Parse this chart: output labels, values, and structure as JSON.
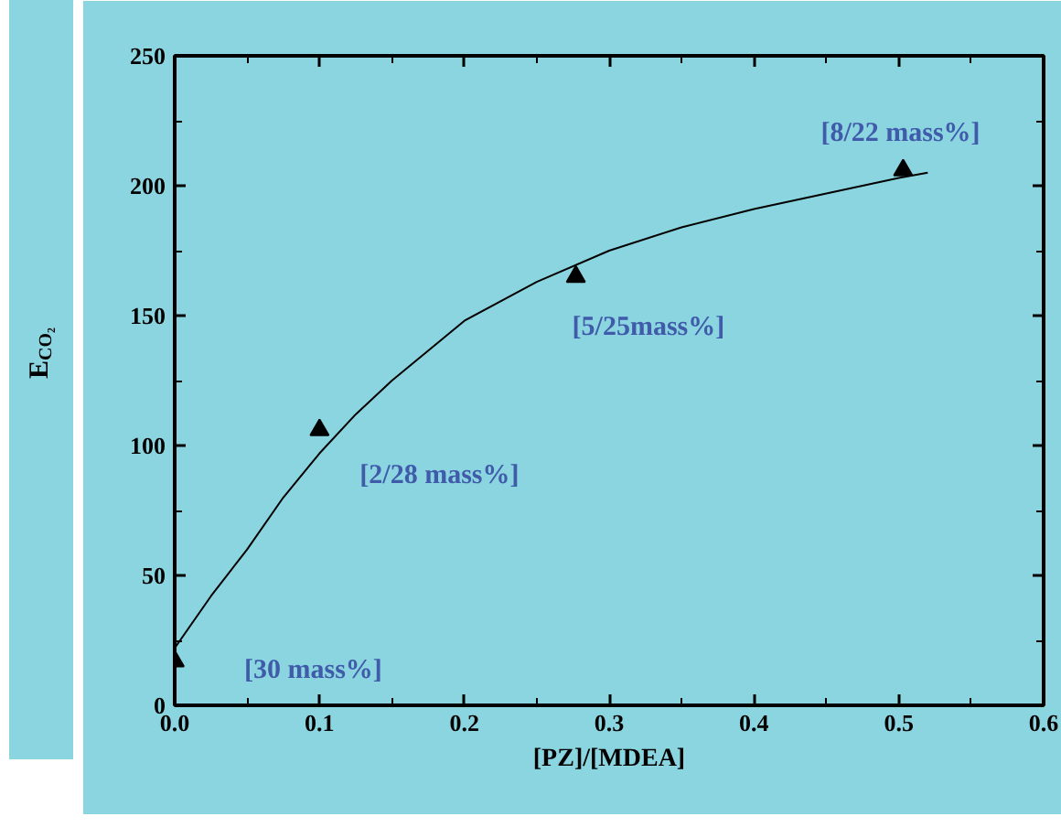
{
  "chart_data": {
    "type": "scatter",
    "xlabel": "[PZ]/[MDEA]",
    "ylabel": "E$_{CO₂}$",
    "x": [
      0.0,
      0.1,
      0.277,
      0.503
    ],
    "series": [
      {
        "color": "#000000",
        "marker": "triangle",
        "values": [
          17,
          106,
          165,
          206
        ]
      },
      {
        "type": "line",
        "color": "#000000",
        "x": [
          0.0,
          0.025,
          0.05,
          0.075,
          0.1,
          0.125,
          0.15,
          0.2,
          0.25,
          0.3,
          0.35,
          0.4,
          0.45,
          0.5,
          0.52
        ],
        "values": [
          22,
          42,
          60,
          80,
          97,
          112,
          125,
          148,
          163,
          175,
          184,
          191,
          197,
          203,
          205
        ]
      }
    ],
    "annotations": [
      {
        "text": "[30 mass%]",
        "x": 0.0,
        "y": 17
      },
      {
        "text": "[2/28 mass%]",
        "x": 0.1,
        "y": 106
      },
      {
        "text": "[5/25mass%]",
        "x": 0.277,
        "y": 165
      },
      {
        "text": "[8/22 mass%]",
        "x": 0.503,
        "y": 206
      }
    ],
    "xlim": [
      0.0,
      0.6
    ],
    "ylim": [
      0,
      250
    ],
    "xticks": [
      {
        "value": 0.0,
        "label": "0.0"
      },
      {
        "value": 0.1,
        "label": "0.1"
      },
      {
        "value": 0.2,
        "label": "0.2"
      },
      {
        "value": 0.3,
        "label": "0.3"
      },
      {
        "value": 0.4,
        "label": "0.4"
      },
      {
        "value": 0.5,
        "label": "0.5"
      },
      {
        "value": 0.6,
        "label": "0.6"
      }
    ],
    "yticks": [
      0,
      50,
      100,
      150,
      200,
      250
    ],
    "grid": false
  }
}
